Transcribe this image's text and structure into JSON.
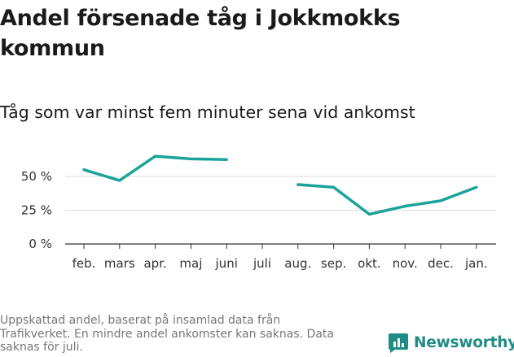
{
  "title": "Andel försenade tåg i Jokkmokks kommun",
  "subtitle": "Tåg som var minst fem minuter sena vid ankomst",
  "source": "Uppskattad andel, baserat på insamlad data från Trafikverket. En mindre andel ankomster kan saknas. Data saknas för juli.",
  "brand": {
    "name": "Newsworthy",
    "icon": "bar-chart-logo-icon"
  },
  "colors": {
    "line": "#1aa39b",
    "grid": "#dcdcdc",
    "axis": "#333333",
    "brand": "#1f8c86"
  },
  "chart_data": {
    "type": "line",
    "categories": [
      "feb.",
      "mars",
      "apr.",
      "maj",
      "juni",
      "juli",
      "aug.",
      "sep.",
      "okt.",
      "nov.",
      "dec.",
      "jan."
    ],
    "series": [
      {
        "values": [
          55,
          47,
          65,
          63,
          62.5,
          null,
          44,
          42,
          22,
          28,
          32,
          42
        ]
      }
    ],
    "yticks": [
      0,
      25,
      50
    ],
    "ytick_labels": [
      "0 %",
      "25 %",
      "50 %"
    ],
    "ylim": [
      0,
      70
    ],
    "grid": true,
    "xlabel": "",
    "ylabel": ""
  }
}
